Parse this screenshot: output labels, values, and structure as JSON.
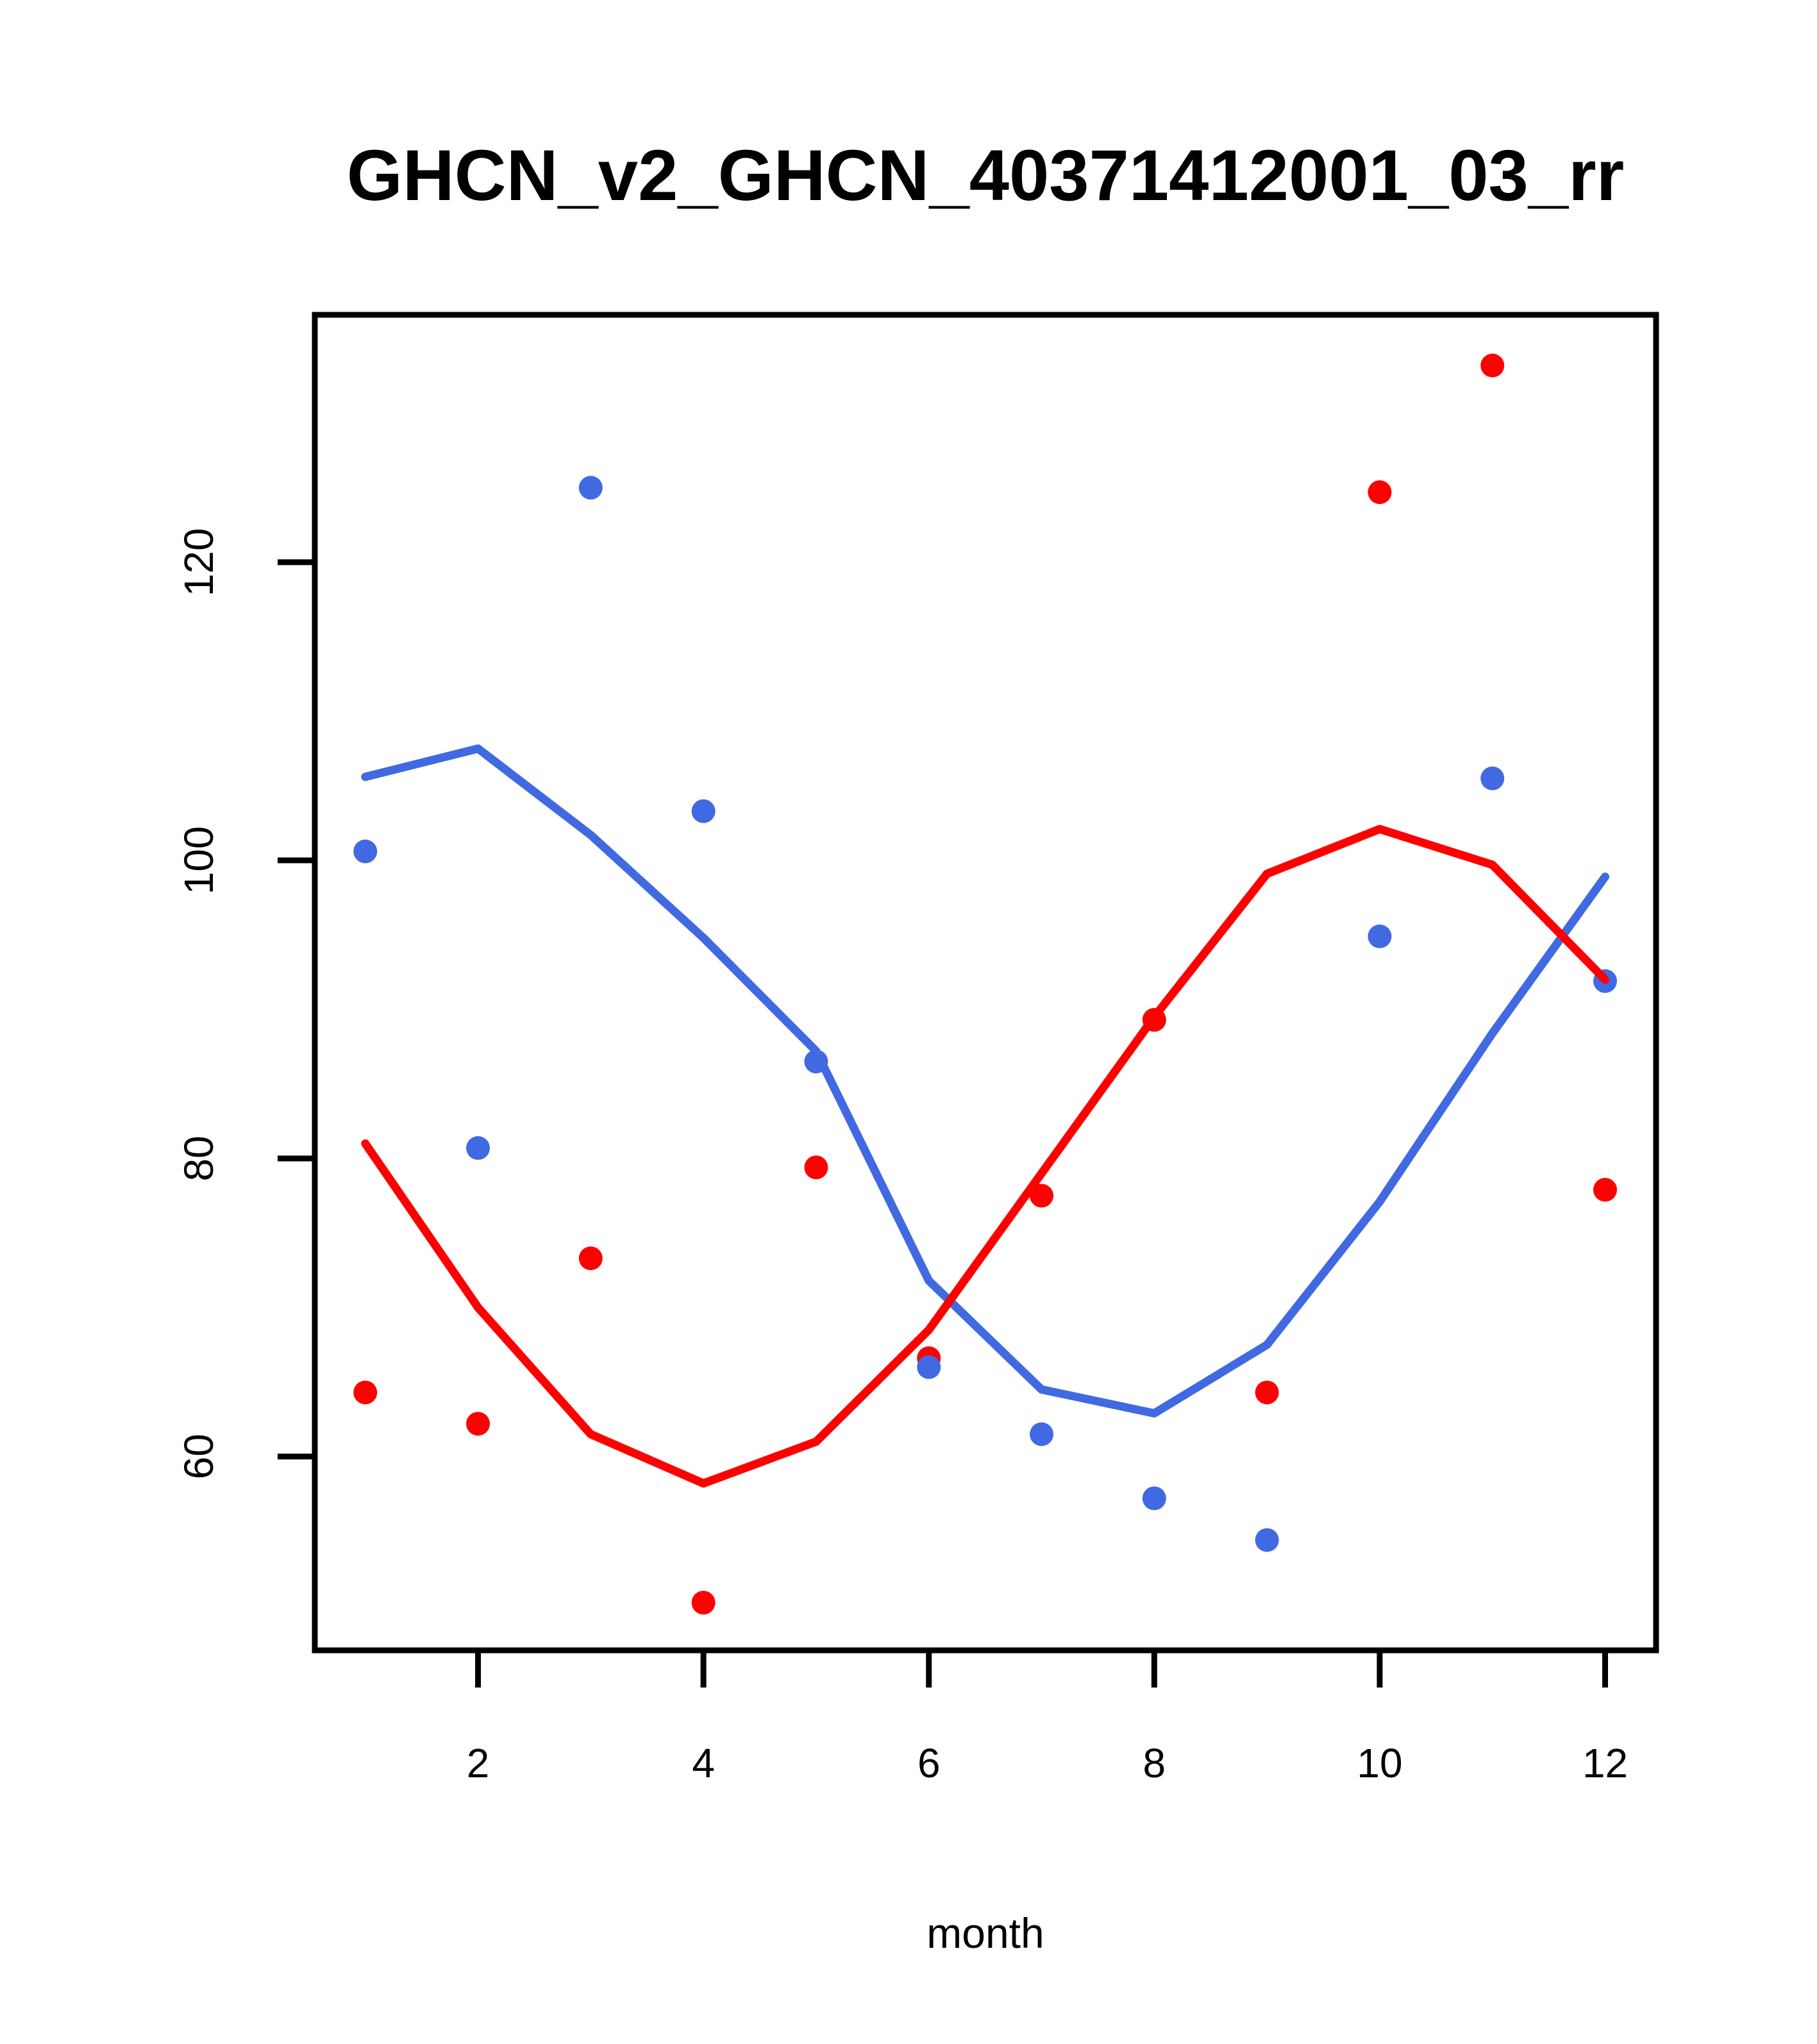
{
  "chart_data": {
    "type": "scatter",
    "title": "GHCN_v2_GHCN_40371412001_03_rr",
    "xlabel": "month",
    "ylabel": "",
    "x": [
      1,
      2,
      3,
      4,
      5,
      6,
      7,
      8,
      9,
      10,
      11,
      12
    ],
    "x_ticks": [
      2,
      4,
      6,
      8,
      10,
      12
    ],
    "y_ticks": [
      60,
      80,
      100,
      120
    ],
    "xlim": [
      0.552,
      12.452
    ],
    "ylim": [
      47.0,
      136.6
    ],
    "grid": false,
    "legend": "none",
    "series": [
      {
        "name": "red-points",
        "label": "red monthly values",
        "role": "points",
        "color": "#FF0000",
        "values": [
          64.3,
          62.2,
          73.3,
          50.2,
          79.4,
          66.6,
          77.5,
          89.3,
          64.3,
          124.7,
          133.2,
          77.9
        ]
      },
      {
        "name": "blue-points",
        "label": "blue monthly values",
        "role": "points",
        "color": "#4169E1",
        "values": [
          100.6,
          80.7,
          125.0,
          103.3,
          86.5,
          66.0,
          61.5,
          57.2,
          54.4,
          94.9,
          105.5,
          91.9
        ]
      },
      {
        "name": "blue-lowess-line",
        "label": "blue lowess smooth",
        "role": "line",
        "color": "#4169E1",
        "values": [
          105.6,
          107.5,
          101.7,
          94.8,
          87.2,
          71.8,
          64.5,
          62.9,
          67.5,
          77.1,
          88.4,
          98.9
        ]
      },
      {
        "name": "red-lowess-line",
        "label": "red lowess smooth",
        "role": "line",
        "color": "#FF0000",
        "values": [
          81.0,
          70.0,
          61.5,
          58.2,
          61.0,
          68.5,
          79.0,
          89.5,
          99.1,
          102.1,
          99.7,
          92.0
        ]
      }
    ]
  },
  "frame": {
    "stroke_color": "#000000",
    "background": "#FFFFFF"
  }
}
